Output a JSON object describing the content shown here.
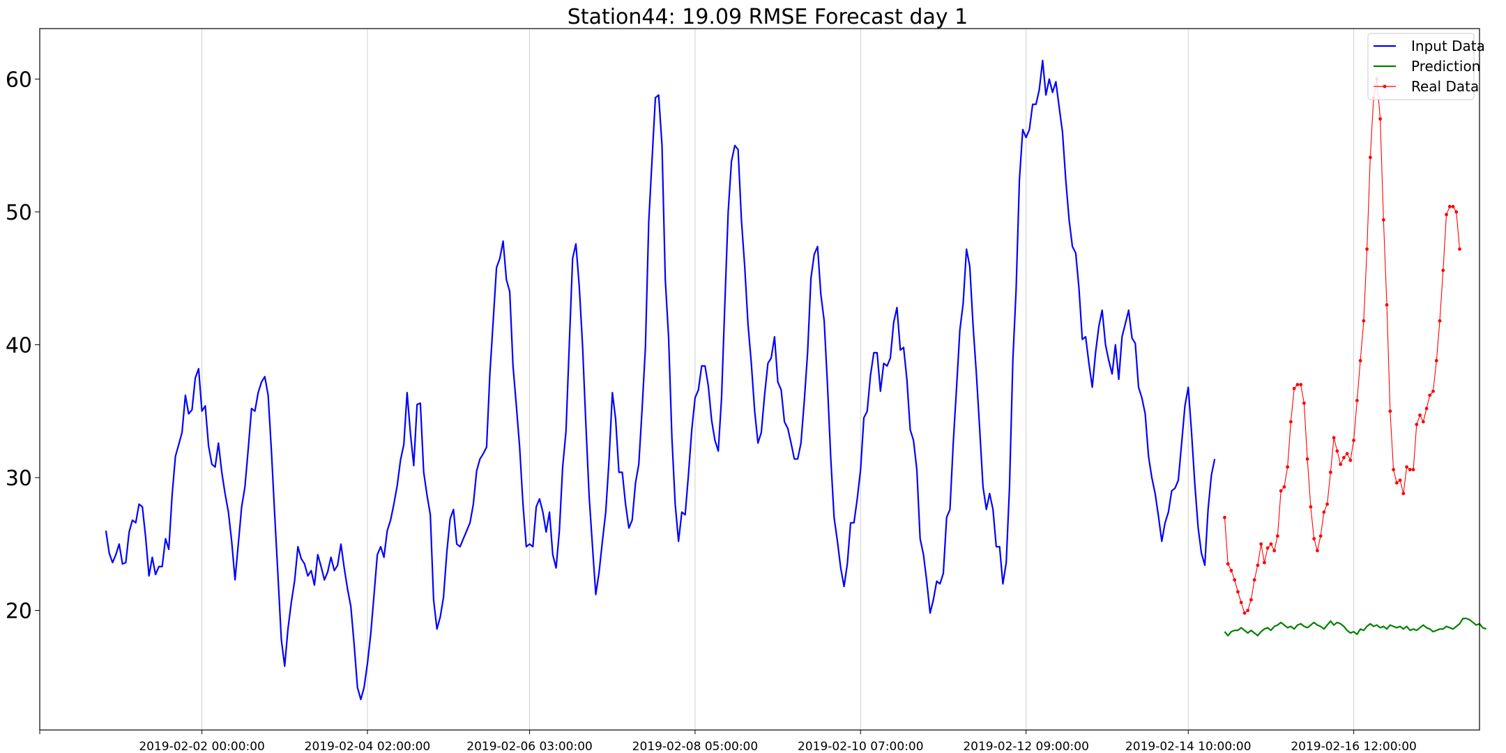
{
  "chart_data": {
    "type": "line",
    "title": "Station44: 19.09 RMSE Forecast day 1",
    "xlabel": "",
    "ylabel": "",
    "x_unit": "hours",
    "x_tick_labels": [
      "2019-02-02 00:00:00",
      "2019-02-04 02:00:00",
      "2019-02-06 03:00:00",
      "2019-02-08 05:00:00",
      "2019-02-10 07:00:00",
      "2019-02-12 09:00:00",
      "2019-02-14 10:00:00",
      "2019-02-16 12:00:00"
    ],
    "x_tick_positions": [
      0,
      50,
      99,
      149,
      199,
      249,
      298,
      348
    ],
    "xlim": [
      -49,
      386
    ],
    "ylim": [
      11,
      63.8
    ],
    "y_ticks": [
      20,
      30,
      40,
      50,
      60
    ],
    "grid": "vertical",
    "legend_position": "top-right",
    "colors": {
      "input": "#0000ff",
      "prediction": "#008000",
      "real": "#ff0000"
    },
    "series": [
      {
        "name": "Input Data",
        "style": "line",
        "color": "#0000ff",
        "x_start": -29,
        "values": [
          26,
          24.3,
          23.6,
          24.2,
          25,
          23.5,
          23.6,
          25.9,
          26.8,
          26.6,
          28,
          27.8,
          25.5,
          22.6,
          24,
          22.7,
          23.3,
          23.3,
          25.4,
          24.6,
          28.7,
          31.6,
          32.5,
          33.4,
          36.2,
          34.8,
          35.1,
          37.5,
          38.2,
          35,
          35.4,
          32.4,
          31,
          30.8,
          32.6,
          30.4,
          28.8,
          27.4,
          25.2,
          22.3,
          25,
          27.8,
          29.3,
          32.2,
          35.2,
          35,
          36.4,
          37.2,
          37.6,
          36.2,
          32,
          27.2,
          22.5,
          17.8,
          15.8,
          18.6,
          20.6,
          22.2,
          24.8,
          23.9,
          23.5,
          22.6,
          23,
          21.9,
          24.2,
          23.3,
          22.3,
          22.9,
          24,
          23,
          23.4,
          25,
          23.2,
          21.6,
          20.3,
          17.4,
          14.2,
          13.3,
          14.2,
          16,
          18.2,
          21.2,
          24.2,
          24.8,
          24,
          26,
          26.8,
          28,
          29.4,
          31.3,
          32.5,
          36.4,
          33.3,
          30.9,
          35.5,
          35.6,
          30.4,
          28.7,
          27.2,
          20.8,
          18.6,
          19.5,
          21,
          24.4,
          26.9,
          27.6,
          25,
          24.8,
          25.4,
          26,
          26.6,
          28,
          30.5,
          31.4,
          31.8,
          32.3,
          37.8,
          41.8,
          45.8,
          46.5,
          47.8,
          44.9,
          44,
          38.4,
          35.4,
          32.3,
          28,
          24.8,
          25,
          24.8,
          27.8,
          28.4,
          27.4,
          25.9,
          27.4,
          24.2,
          23.2,
          26,
          30.8,
          33.5,
          40,
          46.5,
          47.6,
          44.4,
          40,
          34,
          28.6,
          24.8,
          21.2,
          22.9,
          25.2,
          27.4,
          31.3,
          36.4,
          34.4,
          30.4,
          30.4,
          28,
          26.2,
          26.8,
          29.6,
          31,
          35.2,
          39.8,
          49.3,
          53.9,
          58.6,
          58.8,
          55,
          44.9,
          40.5,
          33,
          28,
          25.2,
          27.4,
          27.2,
          30.2,
          33.6,
          36,
          36.6,
          38.4,
          38.4,
          36.9,
          34.3,
          32.8,
          32,
          36,
          43.2,
          50,
          53.8,
          55,
          54.7,
          49.4,
          45.9,
          41.5,
          38.6,
          35,
          32.6,
          33.4,
          36.2,
          38.6,
          39,
          40.6,
          37.2,
          36.6,
          34.2,
          33.7,
          32.6,
          31.4,
          31.4,
          32.6,
          35.8,
          39.4,
          45,
          46.8,
          47.4,
          43.8,
          41.8,
          37,
          31.4,
          27,
          25.2,
          23.2,
          21.8,
          23.5,
          26.6,
          26.6,
          28.4,
          30.6,
          34.5,
          35,
          37.7,
          39.4,
          39.4,
          36.5,
          38.6,
          38.4,
          39,
          41.7,
          42.8,
          39.6,
          39.8,
          37.4,
          33.6,
          32.8,
          30.6,
          25.4,
          24.2,
          22.2,
          19.8,
          20.8,
          22.2,
          22,
          22.8,
          27,
          27.6,
          32.6,
          36.8,
          41.1,
          43.1,
          47.2,
          45.9,
          41.4,
          37.8,
          33.6,
          29.3,
          27.6,
          28.8,
          27.6,
          24.8,
          24.8,
          22,
          23.6,
          29.3,
          38.8,
          44.2,
          52.4,
          56.2,
          55.6,
          56.2,
          58.1,
          58.1,
          59.2,
          61.4,
          58.8,
          60,
          59,
          59.8,
          57.9,
          56,
          52.4,
          49.4,
          47.4,
          46.9,
          44.2,
          40.4,
          40.6,
          38.6,
          36.8,
          39.4,
          41.4,
          42.6,
          40,
          38.8,
          37.8,
          40,
          37.4,
          40.6,
          41.6,
          42.6,
          40.5,
          40.1,
          36.8,
          36,
          34.8,
          31.6,
          30,
          28.8,
          27.1,
          25.2,
          26.6,
          27.4,
          29,
          29.2,
          29.8,
          32.6,
          35.4,
          36.8,
          33.4,
          29.5,
          26.2,
          24.3,
          23.4,
          27.6,
          30.2,
          31.4
        ]
      },
      {
        "name": "Prediction",
        "style": "line",
        "color": "#008000",
        "x_start": 309,
        "values": [
          18.4,
          18.1,
          18.4,
          18.5,
          18.5,
          18.7,
          18.5,
          18.3,
          18.5,
          18.3,
          18.1,
          18.4,
          18.6,
          18.7,
          18.5,
          18.8,
          18.9,
          19.1,
          18.9,
          18.7,
          18.8,
          18.6,
          18.9,
          19,
          18.8,
          18.7,
          18.9,
          19.1,
          18.9,
          18.8,
          18.6,
          18.9,
          19.2,
          18.9,
          19.1,
          19,
          18.8,
          18.5,
          18.3,
          18.4,
          18.2,
          18.6,
          18.5,
          18.8,
          19,
          18.8,
          18.9,
          18.7,
          18.8,
          18.6,
          18.9,
          18.8,
          18.7,
          18.8,
          18.6,
          18.8,
          18.5,
          18.6,
          18.5,
          18.7,
          18.9,
          18.7,
          18.6,
          18.4,
          18.5,
          18.6,
          18.6,
          18.8,
          18.7,
          18.6,
          18.8,
          19,
          19.4,
          19.4,
          19.3,
          19.1,
          18.9,
          19,
          18.7,
          18.6
        ]
      },
      {
        "name": "Real Data",
        "style": "line-marker",
        "color": "#ff0000",
        "x_start": 309,
        "values": [
          27,
          23.5,
          23,
          22.3,
          21.4,
          20.6,
          19.8,
          20,
          20.8,
          22.3,
          23.4,
          25,
          23.6,
          24.7,
          25,
          24.5,
          25.6,
          29,
          29.3,
          30.8,
          34.2,
          36.7,
          37,
          37,
          35.6,
          31.4,
          27.8,
          25.4,
          24.5,
          25.6,
          27.4,
          28,
          30.4,
          33,
          32,
          31,
          31.5,
          31.8,
          31.3,
          32.8,
          35.8,
          38.8,
          41.8,
          47.2,
          54.1,
          58.6,
          60,
          57,
          49.4,
          43,
          35,
          30.6,
          29.6,
          29.8,
          28.8,
          30.8,
          30.6,
          30.6,
          34,
          34.7,
          34.2,
          35.2,
          36.2,
          36.5,
          38.8,
          41.8,
          45.6,
          49.8,
          50.4,
          50.4,
          50,
          47.2
        ]
      }
    ]
  }
}
